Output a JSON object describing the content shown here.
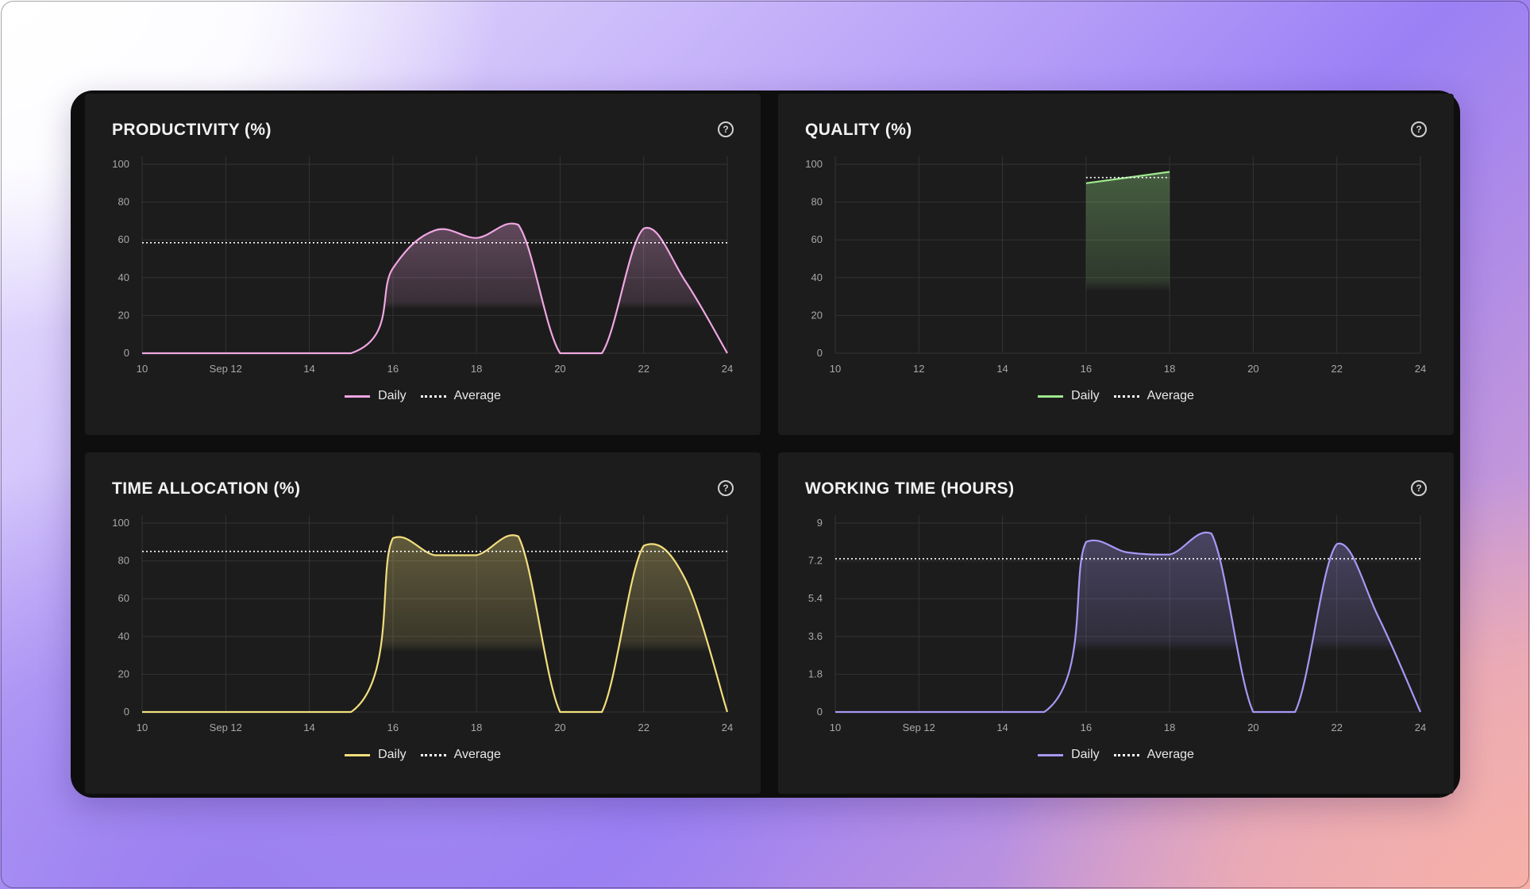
{
  "chart_data": [
    {
      "type": "area",
      "title": "PRODUCTIVITY (%)",
      "color": "#f0a6e2",
      "ylim": [
        0,
        100
      ],
      "y_ticks": [
        "0",
        "20",
        "40",
        "60",
        "80",
        "100"
      ],
      "x_ticks": [
        "10",
        "Sep 12",
        "14",
        "16",
        "18",
        "20",
        "22",
        "24"
      ],
      "xlim": [
        10,
        24
      ],
      "legend": [
        "Daily",
        "Average"
      ],
      "legend_position": "bottom-center",
      "average": 58.5,
      "series": [
        {
          "name": "Daily",
          "points": [
            [
              10,
              0
            ],
            [
              15,
              0
            ],
            [
              16,
              45
            ],
            [
              17,
              65
            ],
            [
              18,
              61
            ],
            [
              19,
              68
            ],
            [
              20,
              0
            ],
            [
              21,
              0
            ],
            [
              22,
              66
            ],
            [
              23,
              38
            ],
            [
              24,
              0
            ]
          ]
        }
      ]
    },
    {
      "type": "area",
      "title": "QUALITY (%)",
      "color": "#9ee88e",
      "ylim": [
        0,
        100
      ],
      "y_ticks": [
        "0",
        "20",
        "40",
        "60",
        "80",
        "100"
      ],
      "x_ticks": [
        "10",
        "12",
        "14",
        "16",
        "18",
        "20",
        "22",
        "24"
      ],
      "xlim": [
        10,
        24
      ],
      "legend": [
        "Daily",
        "Average"
      ],
      "legend_position": "bottom-center",
      "average_segment": [
        [
          16,
          93
        ],
        [
          18,
          93
        ]
      ],
      "series": [
        {
          "name": "Daily",
          "points": [
            [
              16,
              90
            ],
            [
              18,
              96
            ]
          ]
        }
      ]
    },
    {
      "type": "area",
      "title": "TIME ALLOCATION (%)",
      "color": "#f3de7d",
      "ylim": [
        0,
        100
      ],
      "y_ticks": [
        "0",
        "20",
        "40",
        "60",
        "80",
        "100"
      ],
      "x_ticks": [
        "10",
        "Sep 12",
        "14",
        "16",
        "18",
        "20",
        "22",
        "24"
      ],
      "xlim": [
        10,
        24
      ],
      "legend": [
        "Daily",
        "Average"
      ],
      "legend_position": "bottom-center",
      "average": 85,
      "series": [
        {
          "name": "Daily",
          "points": [
            [
              10,
              0
            ],
            [
              15,
              0
            ],
            [
              16,
              92
            ],
            [
              17,
              83
            ],
            [
              18,
              83
            ],
            [
              19,
              93
            ],
            [
              20,
              0
            ],
            [
              21,
              0
            ],
            [
              22,
              88
            ],
            [
              23,
              70
            ],
            [
              24,
              0
            ]
          ]
        }
      ]
    },
    {
      "type": "area",
      "title": "WORKING TIME (HOURS)",
      "color": "#a898f5",
      "ylim": [
        0,
        9
      ],
      "y_ticks": [
        "0",
        "1.8",
        "3.6",
        "5.4",
        "7.2",
        "9"
      ],
      "x_ticks": [
        "10",
        "Sep 12",
        "14",
        "16",
        "18",
        "20",
        "22",
        "24"
      ],
      "xlim": [
        10,
        24
      ],
      "legend": [
        "Daily",
        "Average"
      ],
      "legend_position": "bottom-center",
      "average": 7.3,
      "series": [
        {
          "name": "Daily",
          "points": [
            [
              10,
              0
            ],
            [
              15,
              0
            ],
            [
              16,
              8.1
            ],
            [
              17,
              7.6
            ],
            [
              18,
              7.5
            ],
            [
              19,
              8.5
            ],
            [
              20,
              0
            ],
            [
              21,
              0
            ],
            [
              22,
              8.0
            ],
            [
              23,
              4.5
            ],
            [
              24,
              0
            ]
          ]
        }
      ]
    }
  ]
}
